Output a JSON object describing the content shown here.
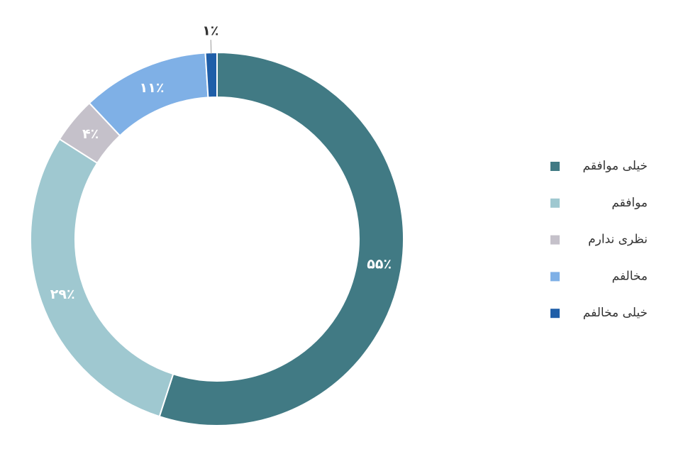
{
  "chart_data": {
    "type": "donut",
    "categories": [
      "خیلی موافقم",
      "موافقم",
      "نظری ندارم",
      "مخالفم",
      "خیلی مخالفم"
    ],
    "values": [
      55,
      29,
      4,
      11,
      1
    ],
    "value_labels": [
      "۵۵٪",
      "۲۹٪",
      "۴٪",
      "۱۱٪",
      "۱٪"
    ],
    "colors": [
      "#417a84",
      "#9fc8d0",
      "#c5c1ca",
      "#7fb0e6",
      "#1f5ea8"
    ],
    "legend": "right"
  }
}
